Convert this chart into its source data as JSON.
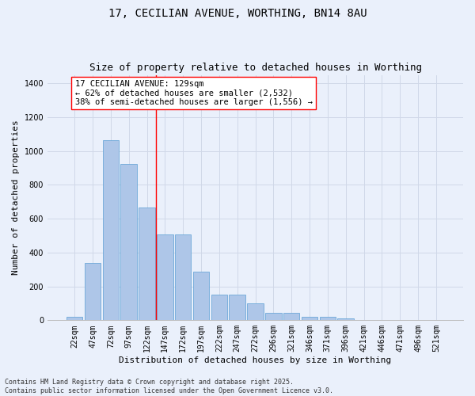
{
  "title": "17, CECILIAN AVENUE, WORTHING, BN14 8AU",
  "subtitle": "Size of property relative to detached houses in Worthing",
  "xlabel": "Distribution of detached houses by size in Worthing",
  "ylabel": "Number of detached properties",
  "categories": [
    "22sqm",
    "47sqm",
    "72sqm",
    "97sqm",
    "122sqm",
    "147sqm",
    "172sqm",
    "197sqm",
    "222sqm",
    "247sqm",
    "272sqm",
    "296sqm",
    "321sqm",
    "346sqm",
    "371sqm",
    "396sqm",
    "421sqm",
    "446sqm",
    "471sqm",
    "496sqm",
    "521sqm"
  ],
  "values": [
    20,
    340,
    1065,
    925,
    665,
    505,
    505,
    285,
    150,
    150,
    100,
    45,
    45,
    20,
    20,
    10,
    0,
    0,
    0,
    0,
    0
  ],
  "bar_color": "#aec6e8",
  "bar_edge_color": "#5a9fd4",
  "grid_color": "#d0d8e8",
  "bg_color": "#eaf0fb",
  "vline_x": 4.5,
  "vline_color": "red",
  "annotation_text": "17 CECILIAN AVENUE: 129sqm\n← 62% of detached houses are smaller (2,532)\n38% of semi-detached houses are larger (1,556) →",
  "annotation_box_color": "white",
  "annotation_box_edge": "red",
  "ylim": [
    0,
    1450
  ],
  "yticks": [
    0,
    200,
    400,
    600,
    800,
    1000,
    1200,
    1400
  ],
  "footer_text": "Contains HM Land Registry data © Crown copyright and database right 2025.\nContains public sector information licensed under the Open Government Licence v3.0.",
  "title_fontsize": 10,
  "subtitle_fontsize": 9,
  "xlabel_fontsize": 8,
  "ylabel_fontsize": 8,
  "tick_fontsize": 7,
  "annotation_fontsize": 7.5,
  "footer_fontsize": 6
}
